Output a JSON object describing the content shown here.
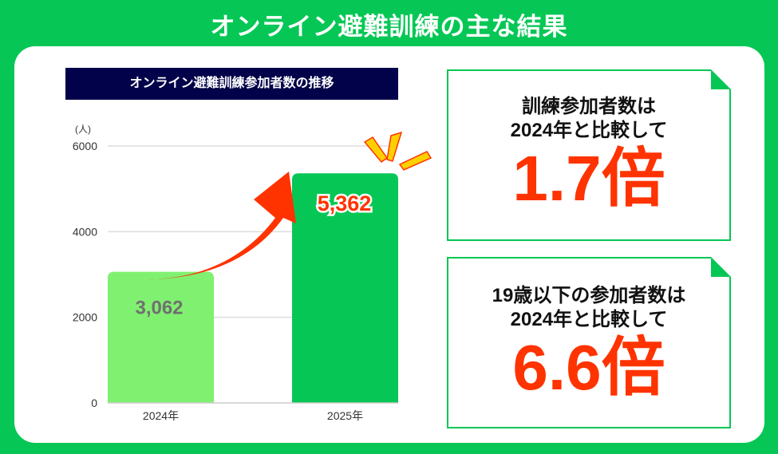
{
  "header": {
    "title": "オンライン避難訓練の主な結果"
  },
  "chart_data": {
    "type": "bar",
    "title": "オンライン避難訓練参加者数の推移",
    "ylabel": "(人)",
    "categories": [
      "2024年",
      "2025年"
    ],
    "values": [
      3062,
      5362
    ],
    "value_labels": [
      "3,062",
      "5,362"
    ],
    "ylim": [
      0,
      6000
    ],
    "yticks": [
      0,
      2000,
      4000,
      6000
    ],
    "grid": true,
    "colors": [
      "#80f070",
      "#06c755"
    ],
    "annotation": "arrow from 2024 to 2025"
  },
  "highlights": [
    {
      "lead_1": "訓練参加者数は",
      "lead_2": "2024年と比較して",
      "value": "1.7倍"
    },
    {
      "lead_1": "19歳以下の参加者数は",
      "lead_2": "2024年と比較して",
      "value": "6.6倍"
    }
  ],
  "colors": {
    "brand": "#06c755",
    "accent": "#ff3300",
    "navy": "#02024a"
  }
}
